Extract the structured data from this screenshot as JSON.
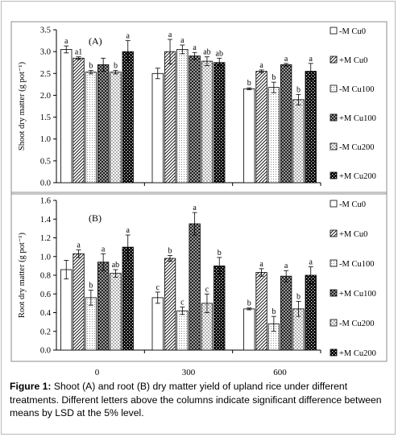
{
  "figure": {
    "caption_label": "Figure 1:",
    "caption_text": " Shoot (A) and root (B) dry matter yield of upland rice under different treatments. Different letters above the columns indicate significant difference between means by LSD at the 5% level."
  },
  "chart_data": [
    {
      "type": "bar",
      "panel_label": "(A)",
      "ylabel": "Shoot dry  matter (g pot⁻¹)",
      "ylim": [
        0,
        3.5
      ],
      "yticks": [
        "0.0",
        "0.5",
        "1.0",
        "1.5",
        "2.0",
        "2.5",
        "3.0",
        "3.5"
      ],
      "categories": [
        "0",
        "300",
        "600"
      ],
      "grid": false,
      "legend_position": "right",
      "series": [
        {
          "name": "-M Cu0",
          "pattern": "white",
          "values": [
            3.05,
            2.5,
            2.15
          ],
          "errors": [
            0.08,
            0.12,
            0.02
          ],
          "letters": [
            "a",
            "",
            "b"
          ]
        },
        {
          "name": "+M Cu0",
          "pattern": "diagonal",
          "values": [
            2.85,
            3.0,
            2.55
          ],
          "errors": [
            0.03,
            0.28,
            0.03
          ],
          "letters": [
            "a1",
            "a",
            "a"
          ]
        },
        {
          "name": "-M Cu100",
          "pattern": "hatch",
          "values": [
            2.53,
            3.05,
            2.18
          ],
          "errors": [
            0.04,
            0.1,
            0.12
          ],
          "letters": [
            "b",
            "a",
            "b"
          ]
        },
        {
          "name": "+M Cu100",
          "pattern": "checker",
          "values": [
            2.7,
            2.9,
            2.7
          ],
          "errors": [
            0.15,
            0.08,
            0.03
          ],
          "letters": [
            "",
            "a",
            "a"
          ]
        },
        {
          "name": "-M Cu200",
          "pattern": "dots",
          "values": [
            2.53,
            2.78,
            1.9
          ],
          "errors": [
            0.04,
            0.1,
            0.12
          ],
          "letters": [
            "b",
            "ab",
            "b"
          ]
        },
        {
          "name": "+M Cu200",
          "pattern": "heavy",
          "values": [
            3.0,
            2.75,
            2.55
          ],
          "errors": [
            0.25,
            0.1,
            0.18
          ],
          "letters": [
            "a",
            "ab",
            "a"
          ]
        }
      ]
    },
    {
      "type": "bar",
      "panel_label": "(B)",
      "ylabel": "Root dry matter (g pot⁻¹)",
      "ylim": [
        0,
        1.6
      ],
      "yticks": [
        "0.0",
        "0.2",
        "0.4",
        "0.6",
        "0.8",
        "1.0",
        "1.2",
        "1.4",
        "1.6"
      ],
      "categories": [
        "0",
        "300",
        "600"
      ],
      "grid": false,
      "legend_position": "right",
      "series": [
        {
          "name": "-M Cu0",
          "pattern": "white",
          "values": [
            0.86,
            0.56,
            0.44
          ],
          "errors": [
            0.1,
            0.06,
            0.01
          ],
          "letters": [
            "",
            "c",
            "b"
          ]
        },
        {
          "name": "+M Cu0",
          "pattern": "diagonal",
          "values": [
            1.03,
            0.98,
            0.83
          ],
          "errors": [
            0.04,
            0.03,
            0.04
          ],
          "letters": [
            "a",
            "b",
            "a"
          ]
        },
        {
          "name": "-M Cu100",
          "pattern": "hatch",
          "values": [
            0.56,
            0.42,
            0.28
          ],
          "errors": [
            0.08,
            0.04,
            0.08
          ],
          "letters": [
            "b",
            "c",
            "b"
          ]
        },
        {
          "name": "+M Cu100",
          "pattern": "checker",
          "values": [
            0.94,
            1.35,
            0.79
          ],
          "errors": [
            0.09,
            0.12,
            0.06
          ],
          "letters": [
            "a",
            "a",
            "a"
          ]
        },
        {
          "name": "-M Cu200",
          "pattern": "dots",
          "values": [
            0.82,
            0.5,
            0.44
          ],
          "errors": [
            0.04,
            0.1,
            0.08
          ],
          "letters": [
            "ab",
            "c",
            "b"
          ]
        },
        {
          "name": "+M Cu200",
          "pattern": "heavy",
          "values": [
            1.1,
            0.9,
            0.8
          ],
          "errors": [
            0.13,
            0.09,
            0.09
          ],
          "letters": [
            "a",
            "b",
            "a"
          ]
        }
      ]
    }
  ]
}
